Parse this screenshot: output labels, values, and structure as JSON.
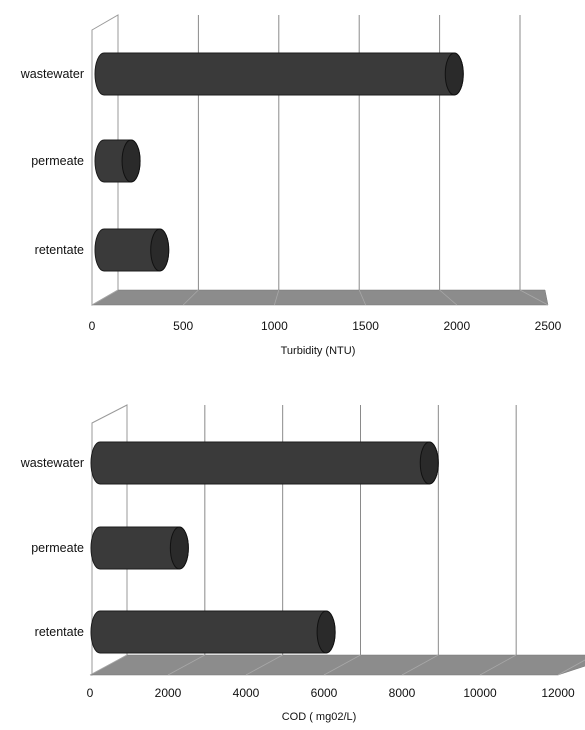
{
  "chart_data": [
    {
      "type": "bar",
      "orientation": "horizontal",
      "style": "3d-cylinder",
      "categories": [
        "wastewater",
        "permeate",
        "retentate"
      ],
      "values": [
        2200,
        170,
        350
      ],
      "xlabel": "Turbidity (NTU)",
      "ylabel": "",
      "xlim": [
        0,
        2500
      ],
      "ticks": [
        "0",
        "500",
        "1000",
        "1500",
        "2000",
        "2500"
      ],
      "grid": true,
      "bar_color": "#3a3a3a",
      "floor_color": "#8c8c8c"
    },
    {
      "type": "bar",
      "orientation": "horizontal",
      "style": "3d-cylinder",
      "categories": [
        "wastewater",
        "permeate",
        "retentate"
      ],
      "values": [
        8300,
        2000,
        5700
      ],
      "xlabel": "COD ( mg02/L)",
      "ylabel": "",
      "xlim": [
        0,
        12000
      ],
      "ticks": [
        "0",
        "2000",
        "4000",
        "6000",
        "8000",
        "10000",
        "12000"
      ],
      "grid": true,
      "bar_color": "#3a3a3a",
      "floor_color": "#8c8c8c"
    }
  ]
}
